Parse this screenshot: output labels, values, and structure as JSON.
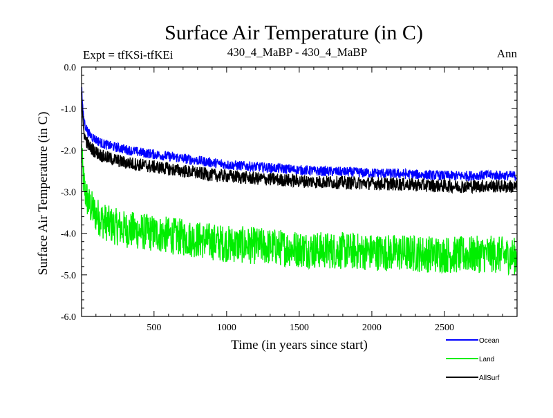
{
  "chart_data": {
    "type": "line",
    "title": "Surface Air Temperature (in C)",
    "subtitle_left": "Expt = tfKSi-tfKEi",
    "subtitle_center": "430_4_MaBP - 430_4_MaBP",
    "subtitle_right": "Ann",
    "xlabel": "Time (in years since start)",
    "ylabel": "Surface Air Temperature (in C)",
    "xlim": [
      1,
      3000
    ],
    "ylim": [
      -6.0,
      0.0
    ],
    "x_ticks": [
      500,
      1000,
      1500,
      2000,
      2500
    ],
    "y_ticks": [
      0.0,
      -1.0,
      -2.0,
      -3.0,
      -4.0,
      -5.0,
      -6.0
    ],
    "y_tick_labels": [
      "0.0",
      "-1.0",
      "-2.0",
      "-3.0",
      "-4.0",
      "-5.0",
      "-6.0"
    ],
    "x_tick_labels": [
      "500",
      "1000",
      "1500",
      "2000",
      "2500"
    ],
    "grid": false,
    "legend_position": "bottom-right outside",
    "series": [
      {
        "name": "Ocean",
        "color": "#0000ff",
        "x": [
          1,
          10,
          25,
          50,
          100,
          150,
          200,
          300,
          400,
          500,
          600,
          700,
          800,
          900,
          1000,
          1200,
          1400,
          1600,
          1800,
          2000,
          2200,
          2400,
          2600,
          2800,
          3000
        ],
        "y": [
          -0.4,
          -1.1,
          -1.4,
          -1.6,
          -1.75,
          -1.85,
          -1.9,
          -1.98,
          -2.05,
          -2.1,
          -2.15,
          -2.2,
          -2.25,
          -2.3,
          -2.35,
          -2.4,
          -2.45,
          -2.5,
          -2.52,
          -2.55,
          -2.57,
          -2.6,
          -2.62,
          -2.6,
          -2.62
        ],
        "noise": 0.12
      },
      {
        "name": "Land",
        "color": "#00ee00",
        "x": [
          1,
          10,
          25,
          50,
          100,
          150,
          200,
          300,
          400,
          500,
          600,
          700,
          800,
          900,
          1000,
          1200,
          1400,
          1600,
          1800,
          2000,
          2200,
          2400,
          2600,
          2800,
          3000
        ],
        "y": [
          -2.0,
          -2.6,
          -3.0,
          -3.3,
          -3.55,
          -3.7,
          -3.8,
          -3.9,
          -3.95,
          -4.0,
          -4.05,
          -4.1,
          -4.15,
          -4.2,
          -4.25,
          -4.3,
          -4.35,
          -4.4,
          -4.42,
          -4.45,
          -4.47,
          -4.5,
          -4.52,
          -4.5,
          -4.55
        ],
        "noise": 0.45
      },
      {
        "name": "AllSurf",
        "color": "#000000",
        "x": [
          1,
          10,
          25,
          50,
          100,
          150,
          200,
          300,
          400,
          500,
          600,
          700,
          800,
          900,
          1000,
          1200,
          1400,
          1600,
          1800,
          2000,
          2200,
          2400,
          2600,
          2800,
          3000
        ],
        "y": [
          -0.6,
          -1.4,
          -1.7,
          -1.9,
          -2.05,
          -2.15,
          -2.2,
          -2.3,
          -2.35,
          -2.4,
          -2.45,
          -2.5,
          -2.55,
          -2.6,
          -2.62,
          -2.68,
          -2.72,
          -2.76,
          -2.78,
          -2.8,
          -2.82,
          -2.85,
          -2.87,
          -2.86,
          -2.88
        ],
        "noise": 0.16
      }
    ]
  }
}
